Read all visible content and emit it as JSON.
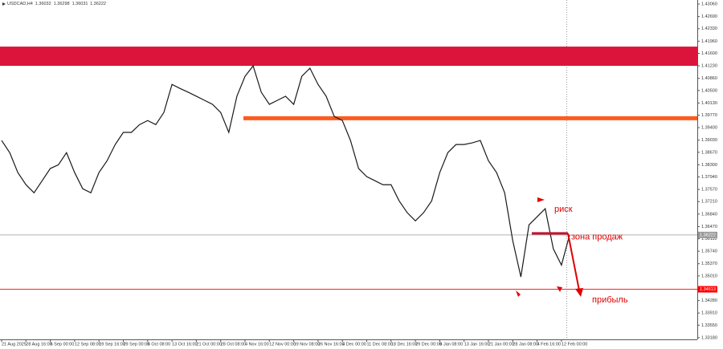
{
  "chart_data": {
    "type": "line",
    "header": {
      "symbol": "USDCAD,H4",
      "ohlc": [
        1.36032,
        1.36298,
        1.36031,
        1.36222
      ]
    },
    "categories": [
      "21 Aug 2025",
      null,
      null,
      "28 Aug 16:00",
      null,
      null,
      "5 Sep 00:00",
      null,
      null,
      "12 Sep 08:00",
      null,
      null,
      "19 Sep 16:00",
      null,
      null,
      "29 Sep 00:00",
      null,
      null,
      "6 Oct 08:00",
      null,
      null,
      "13 Oct 16:00",
      null,
      null,
      "21 Oct 00:00",
      null,
      null,
      "28 Oct 08:00",
      null,
      null,
      "4 Nov 16:00",
      null,
      null,
      "12 Nov 00:00",
      null,
      null,
      "19 Nov 08:00",
      null,
      null,
      "26 Nov 16:00",
      null,
      null,
      "4 Dec 00:00",
      null,
      null,
      "11 Dec 08:00",
      null,
      null,
      "18 Dec 16:00",
      null,
      null,
      "29 Dec 00:00",
      null,
      null,
      "6 Jan 08:00",
      null,
      null,
      "13 Jan 16:00",
      null,
      null,
      "21 Jan 00:00",
      null,
      null,
      "28 Jan 08:00",
      null,
      null,
      "4 Feb 16:00",
      null,
      null,
      "12 Feb 00:00",
      null
    ],
    "series": [
      {
        "name": "USDCAD,H4",
        "color": "#1a1a1a",
        "values": [
          1.3902,
          1.3866,
          1.3807,
          1.3771,
          1.3747,
          1.3783,
          1.3819,
          1.383,
          1.3866,
          1.3807,
          1.3759,
          1.3747,
          1.3807,
          1.3842,
          1.389,
          1.3926,
          1.3926,
          1.3949,
          1.3961,
          1.3949,
          1.3985,
          1.4068,
          1.4056,
          1.4045,
          1.4033,
          1.4021,
          1.4009,
          1.3985,
          1.3926,
          1.4033,
          1.4092,
          1.4123,
          1.4045,
          1.4009,
          1.4021,
          1.4033,
          1.4009,
          1.4092,
          1.4116,
          1.4068,
          1.4033,
          1.3973,
          1.3961,
          1.3902,
          1.3819,
          1.3795,
          1.3783,
          1.3771,
          1.3771,
          1.3723,
          1.3688,
          1.3664,
          1.3688,
          1.3723,
          1.3807,
          1.3866,
          1.389,
          1.389,
          1.3895,
          1.3902,
          1.3842,
          1.3807,
          1.3747,
          1.3605,
          1.3498,
          1.3652,
          1.3676,
          1.37,
          1.3581,
          1.3533,
          1.3622
        ]
      }
    ],
    "ylim": [
      1.3313,
      1.4318
    ],
    "yticks": [
      {
        "value": 1.4306,
        "label": "1.43060"
      },
      {
        "value": 1.4269,
        "label": "1.42690"
      },
      {
        "value": 1.4233,
        "label": "1.42330"
      },
      {
        "value": 1.4196,
        "label": "1.41960"
      },
      {
        "value": 1.416,
        "label": "1.41600"
      },
      {
        "value": 1.4123,
        "label": "1.41230"
      },
      {
        "value": 1.4086,
        "label": "1.40860"
      },
      {
        "value": 1.405,
        "label": "1.40500"
      },
      {
        "value": 1.4013,
        "label": "1.40130"
      },
      {
        "value": 1.3977,
        "label": "1.39770"
      },
      {
        "value": 1.394,
        "label": "1.39400"
      },
      {
        "value": 1.3903,
        "label": "1.39030"
      },
      {
        "value": 1.3867,
        "label": "1.38670"
      },
      {
        "value": 1.383,
        "label": "1.38300"
      },
      {
        "value": 1.3794,
        "label": "1.37940"
      },
      {
        "value": 1.3757,
        "label": "1.37570"
      },
      {
        "value": 1.3721,
        "label": "1.37210"
      },
      {
        "value": 1.3684,
        "label": "1.36840"
      },
      {
        "value": 1.3647,
        "label": "1.36470"
      },
      {
        "value": 1.3611,
        "label": "1.36110"
      },
      {
        "value": 1.3574,
        "label": "1.35740"
      },
      {
        "value": 1.3537,
        "label": "1.35370"
      },
      {
        "value": 1.3501,
        "label": "1.35010"
      },
      {
        "value": 1.3464,
        "label": "1.34640"
      },
      {
        "value": 1.3428,
        "label": "1.34280"
      },
      {
        "value": 1.3391,
        "label": "1.33910"
      },
      {
        "value": 1.3355,
        "label": "1.33550"
      },
      {
        "value": 1.3318,
        "label": "1.33180"
      }
    ],
    "zone": {
      "from": 1.4123,
      "to": 1.418,
      "color": "#dc143c"
    },
    "level": {
      "value": 1.3968,
      "color": "#ff5a1e"
    },
    "price_labels": [
      {
        "value": 1.36222,
        "color": "#9a9a9a"
      },
      {
        "value": 1.34613,
        "color": "#ff0000"
      }
    ],
    "sell_zone": {
      "value": 1.3627,
      "color": "#c8102e",
      "label": "зона продаж"
    },
    "annotations": {
      "risk": "риск",
      "profit": "прибыль",
      "color": "#e00000"
    }
  }
}
